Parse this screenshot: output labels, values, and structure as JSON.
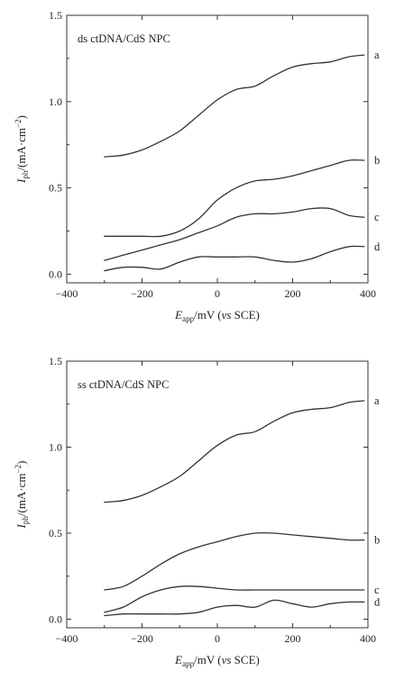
{
  "chart_data": [
    {
      "type": "line",
      "annotation": "ds ctDNA/CdS NPC",
      "xlabel_main": "E",
      "xlabel_sub": "app",
      "xlabel_rest": "/mV (",
      "xlabel_vs": "vs",
      "xlabel_end": " SCE)",
      "ylabel_main": "I",
      "ylabel_sub": "ph",
      "ylabel_rest": "/(mA·cm",
      "ylabel_sup": "−2",
      "ylabel_end": ")",
      "xlim": [
        -400,
        400
      ],
      "ylim": [
        -0.05,
        1.5
      ],
      "xticks": [
        -400,
        -200,
        0,
        200,
        400
      ],
      "xtick_labels": [
        "−400",
        "−200",
        "0",
        "200",
        "400"
      ],
      "yticks": [
        0.0,
        0.5,
        1.0,
        1.5
      ],
      "ytick_labels": [
        "0.0",
        "0.5",
        "1.0",
        "1.5"
      ],
      "grid": false,
      "series": [
        {
          "name": "a",
          "x": [
            -300,
            -250,
            -200,
            -150,
            -100,
            -50,
            0,
            50,
            100,
            150,
            200,
            250,
            300,
            350,
            390
          ],
          "y": [
            0.68,
            0.69,
            0.72,
            0.77,
            0.83,
            0.92,
            1.01,
            1.07,
            1.09,
            1.15,
            1.2,
            1.22,
            1.23,
            1.26,
            1.27
          ]
        },
        {
          "name": "b",
          "x": [
            -300,
            -250,
            -200,
            -150,
            -100,
            -50,
            0,
            50,
            100,
            150,
            200,
            250,
            300,
            350,
            390
          ],
          "y": [
            0.22,
            0.22,
            0.22,
            0.22,
            0.25,
            0.32,
            0.43,
            0.5,
            0.54,
            0.55,
            0.57,
            0.6,
            0.63,
            0.66,
            0.66
          ]
        },
        {
          "name": "c",
          "x": [
            -300,
            -250,
            -200,
            -150,
            -100,
            -50,
            0,
            50,
            100,
            150,
            200,
            250,
            300,
            350,
            390
          ],
          "y": [
            0.08,
            0.11,
            0.14,
            0.17,
            0.2,
            0.24,
            0.28,
            0.33,
            0.35,
            0.35,
            0.36,
            0.38,
            0.38,
            0.34,
            0.33
          ]
        },
        {
          "name": "d",
          "x": [
            -300,
            -250,
            -200,
            -150,
            -100,
            -50,
            0,
            50,
            100,
            150,
            200,
            250,
            300,
            350,
            390
          ],
          "y": [
            0.02,
            0.04,
            0.04,
            0.03,
            0.07,
            0.1,
            0.1,
            0.1,
            0.1,
            0.08,
            0.07,
            0.09,
            0.13,
            0.16,
            0.16
          ]
        }
      ]
    },
    {
      "type": "line",
      "annotation": "ss ctDNA/CdS NPC",
      "xlabel_main": "E",
      "xlabel_sub": "app",
      "xlabel_rest": "/mV (",
      "xlabel_vs": "vs",
      "xlabel_end": " SCE)",
      "ylabel_main": "I",
      "ylabel_sub": "ph",
      "ylabel_rest": "/(mA·cm",
      "ylabel_sup": "−2",
      "ylabel_end": ")",
      "xlim": [
        -400,
        400
      ],
      "ylim": [
        -0.05,
        1.5
      ],
      "xticks": [
        -400,
        -200,
        0,
        200,
        400
      ],
      "xtick_labels": [
        "−400",
        "−200",
        "0",
        "200",
        "400"
      ],
      "yticks": [
        0.0,
        0.5,
        1.0,
        1.5
      ],
      "ytick_labels": [
        "0.0",
        "0.5",
        "1.0",
        "1.5"
      ],
      "grid": false,
      "series": [
        {
          "name": "a",
          "x": [
            -300,
            -250,
            -200,
            -150,
            -100,
            -50,
            0,
            50,
            100,
            150,
            200,
            250,
            300,
            350,
            390
          ],
          "y": [
            0.68,
            0.69,
            0.72,
            0.77,
            0.83,
            0.92,
            1.01,
            1.07,
            1.09,
            1.15,
            1.2,
            1.22,
            1.23,
            1.26,
            1.27
          ]
        },
        {
          "name": "b",
          "x": [
            -300,
            -250,
            -200,
            -150,
            -100,
            -50,
            0,
            50,
            100,
            150,
            200,
            250,
            300,
            350,
            390
          ],
          "y": [
            0.17,
            0.19,
            0.25,
            0.32,
            0.38,
            0.42,
            0.45,
            0.48,
            0.5,
            0.5,
            0.49,
            0.48,
            0.47,
            0.46,
            0.46
          ]
        },
        {
          "name": "c",
          "x": [
            -300,
            -250,
            -200,
            -150,
            -100,
            -50,
            0,
            50,
            100,
            150,
            200,
            250,
            300,
            350,
            390
          ],
          "y": [
            0.04,
            0.07,
            0.13,
            0.17,
            0.19,
            0.19,
            0.18,
            0.17,
            0.17,
            0.17,
            0.17,
            0.17,
            0.17,
            0.17,
            0.17
          ]
        },
        {
          "name": "d",
          "x": [
            -300,
            -250,
            -200,
            -150,
            -100,
            -50,
            0,
            50,
            100,
            150,
            200,
            250,
            300,
            350,
            390
          ],
          "y": [
            0.02,
            0.03,
            0.03,
            0.03,
            0.03,
            0.04,
            0.07,
            0.08,
            0.07,
            0.11,
            0.09,
            0.07,
            0.09,
            0.1,
            0.1
          ]
        }
      ]
    }
  ]
}
